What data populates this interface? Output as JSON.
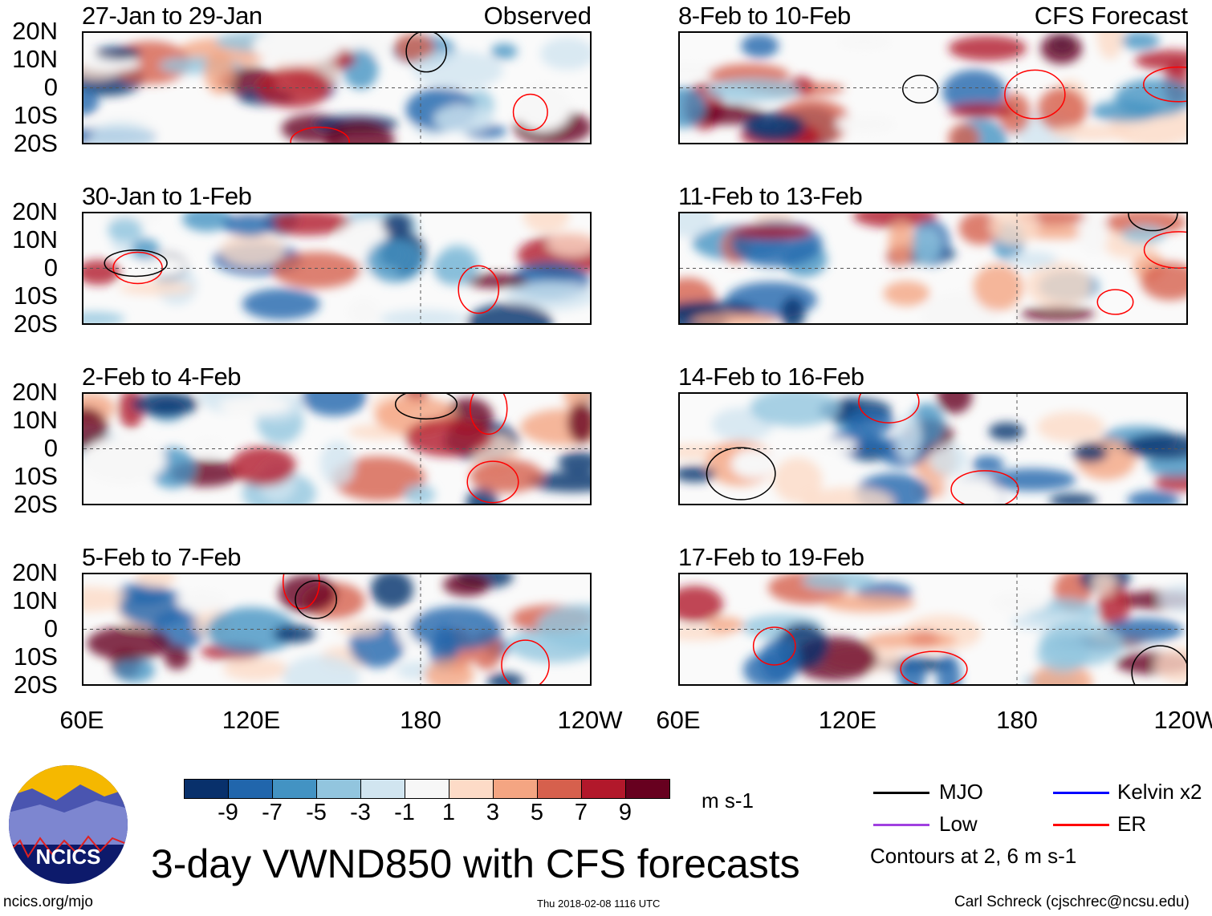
{
  "title": "3-day VWND850 with CFS forecasts",
  "panels_left": [
    {
      "title": "27-Jan to 29-Jan",
      "label": "Observed"
    },
    {
      "title": "30-Jan to 1-Feb",
      "label": ""
    },
    {
      "title": "2-Feb to 4-Feb",
      "label": ""
    },
    {
      "title": "5-Feb to 7-Feb",
      "label": ""
    }
  ],
  "panels_right": [
    {
      "title": "8-Feb to 10-Feb",
      "label": "CFS Forecast"
    },
    {
      "title": "11-Feb to 13-Feb",
      "label": ""
    },
    {
      "title": "14-Feb to 16-Feb",
      "label": ""
    },
    {
      "title": "17-Feb to 19-Feb",
      "label": ""
    }
  ],
  "lat_labels": [
    "20N",
    "10N",
    "0",
    "10S",
    "20S"
  ],
  "lon_labels": [
    "60E",
    "120E",
    "180",
    "120W"
  ],
  "colorbar": {
    "colors": [
      "#08306b",
      "#2166ac",
      "#4393c3",
      "#92c5de",
      "#d1e5f0",
      "#f7f7f7",
      "#fddbc7",
      "#f4a582",
      "#d6604d",
      "#b2182b",
      "#67001f"
    ],
    "labels": [
      "-9",
      "-7",
      "-5",
      "-3",
      "-1",
      "1",
      "3",
      "5",
      "7",
      "9"
    ],
    "units": "m s-1"
  },
  "legend": {
    "items": [
      {
        "label": "MJO",
        "color": "#000000"
      },
      {
        "label": "Kelvin x2",
        "color": "#0000ff"
      },
      {
        "label": "Low",
        "color": "#a040e0"
      },
      {
        "label": "ER",
        "color": "#ff0000"
      }
    ],
    "note": "Contours at 2, 6 m s-1"
  },
  "logo_text": "NCICS",
  "footer": {
    "url": "ncics.org/mjo",
    "timestamp": "Thu 2018-02-08 1116 UTC",
    "credit": "Carl Schreck (cjschrec@ncsu.edu)"
  }
}
